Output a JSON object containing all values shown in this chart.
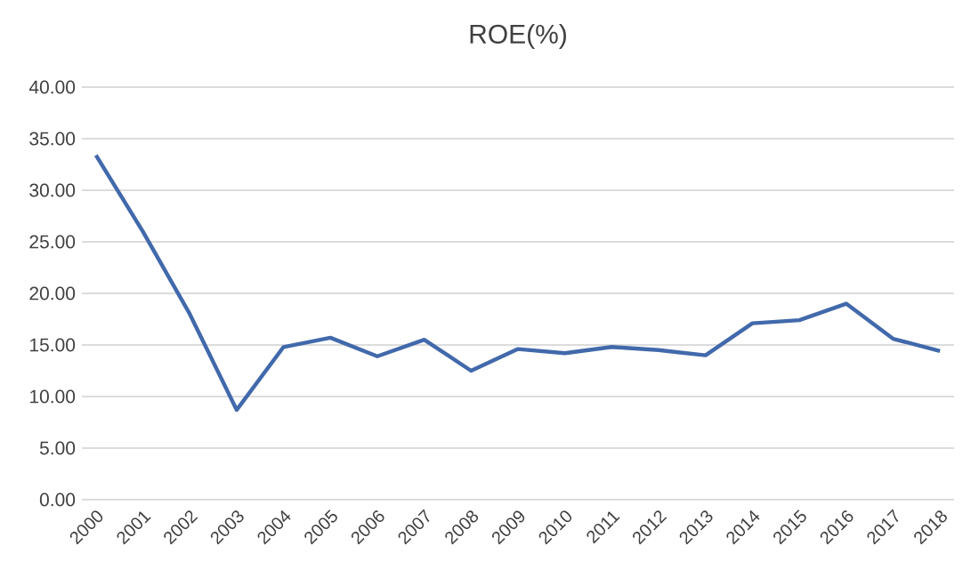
{
  "chart_data": {
    "type": "line",
    "title": "ROE(%)",
    "categories": [
      "2000",
      "2001",
      "2002",
      "2003",
      "2004",
      "2005",
      "2006",
      "2007",
      "2008",
      "2009",
      "2010",
      "2011",
      "2012",
      "2013",
      "2014",
      "2015",
      "2016",
      "2017",
      "2018"
    ],
    "values": [
      33.4,
      26.0,
      18.0,
      8.7,
      14.8,
      15.7,
      13.9,
      15.5,
      12.5,
      14.6,
      14.2,
      14.8,
      14.5,
      14.0,
      17.1,
      17.4,
      19.0,
      15.6,
      14.4
    ],
    "color": "#4169ab",
    "ylim": [
      0,
      40
    ],
    "yticks": [
      {
        "value": 0,
        "label": "0.00"
      },
      {
        "value": 5,
        "label": "5.00"
      },
      {
        "value": 10,
        "label": "10.00"
      },
      {
        "value": 15,
        "label": "15.00"
      },
      {
        "value": 20,
        "label": "20.00"
      },
      {
        "value": 25,
        "label": "25.00"
      },
      {
        "value": 30,
        "label": "30.00"
      },
      {
        "value": 35,
        "label": "35.00"
      },
      {
        "value": 40,
        "label": "40.00"
      }
    ],
    "grid": "y",
    "marker": "none",
    "line_style": "solid"
  }
}
